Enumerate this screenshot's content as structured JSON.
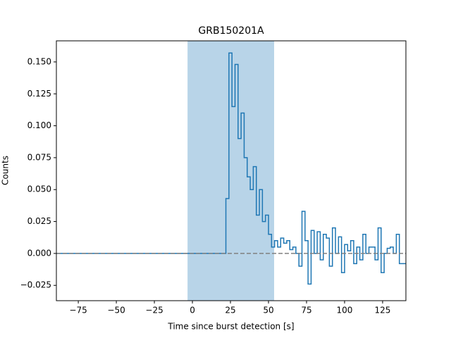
{
  "chart_data": {
    "type": "step",
    "title": "GRB150201A",
    "x_label": "Time since burst detection [s]",
    "y_label": "Counts",
    "xlim": [
      -89.4,
      140.3
    ],
    "ylim": [
      -0.037,
      0.1665
    ],
    "xticks": [
      {
        "value": -75,
        "label": "−75"
      },
      {
        "value": -50,
        "label": "−50"
      },
      {
        "value": -25,
        "label": "−25"
      },
      0,
      25,
      50,
      75,
      100,
      125
    ],
    "yticks": [
      {
        "value": -0.025,
        "label": "−0.025"
      },
      {
        "value": 0,
        "label": "0.000"
      },
      {
        "value": 0.025,
        "label": "0.025"
      },
      {
        "value": 0.05,
        "label": "0.050"
      },
      {
        "value": 0.075,
        "label": "0.075"
      },
      {
        "value": 0.1,
        "label": "0.100"
      },
      {
        "value": 0.125,
        "label": "0.125"
      },
      {
        "value": 0.15,
        "label": "0.150"
      }
    ],
    "span": [
      -3.2,
      53.7
    ],
    "span_color": "#b8d4e8",
    "reference_line": 0,
    "reference_color": "#808080",
    "series": [
      {
        "color": "#1f77b4",
        "x": [
          -89.4,
          22,
          24,
          26,
          28,
          30,
          32,
          34,
          36,
          38,
          40,
          42,
          44,
          46,
          48,
          50,
          52,
          54,
          56,
          58,
          60,
          62,
          64,
          66,
          68,
          70,
          72,
          74,
          76,
          78,
          80,
          82,
          84,
          86,
          88,
          90,
          92,
          94,
          96,
          98,
          100,
          102,
          104,
          106,
          108,
          110,
          112,
          114,
          116,
          118,
          120,
          122,
          124,
          126,
          128,
          130,
          132,
          134,
          136
        ],
        "values": [
          0,
          0.043,
          0.157,
          0.115,
          0.148,
          0.09,
          0.11,
          0.075,
          0.06,
          0.05,
          0.068,
          0.03,
          0.05,
          0.025,
          0.03,
          0.015,
          0.005,
          0.01,
          0.005,
          0.012,
          0.008,
          0.01,
          0.003,
          0.005,
          0.0,
          -0.01,
          0.033,
          0.01,
          -0.024,
          0.018,
          0.0,
          0.017,
          -0.005,
          0.015,
          0.012,
          -0.01,
          0.02,
          0.0,
          0.013,
          -0.015,
          0.007,
          0.002,
          0.01,
          -0.008,
          0.005,
          -0.005,
          0.015,
          0.0,
          0.005,
          0.005,
          -0.005,
          0.02,
          -0.015,
          0.0,
          0.004,
          0.005,
          0.0,
          0.015,
          -0.008
        ]
      }
    ]
  }
}
